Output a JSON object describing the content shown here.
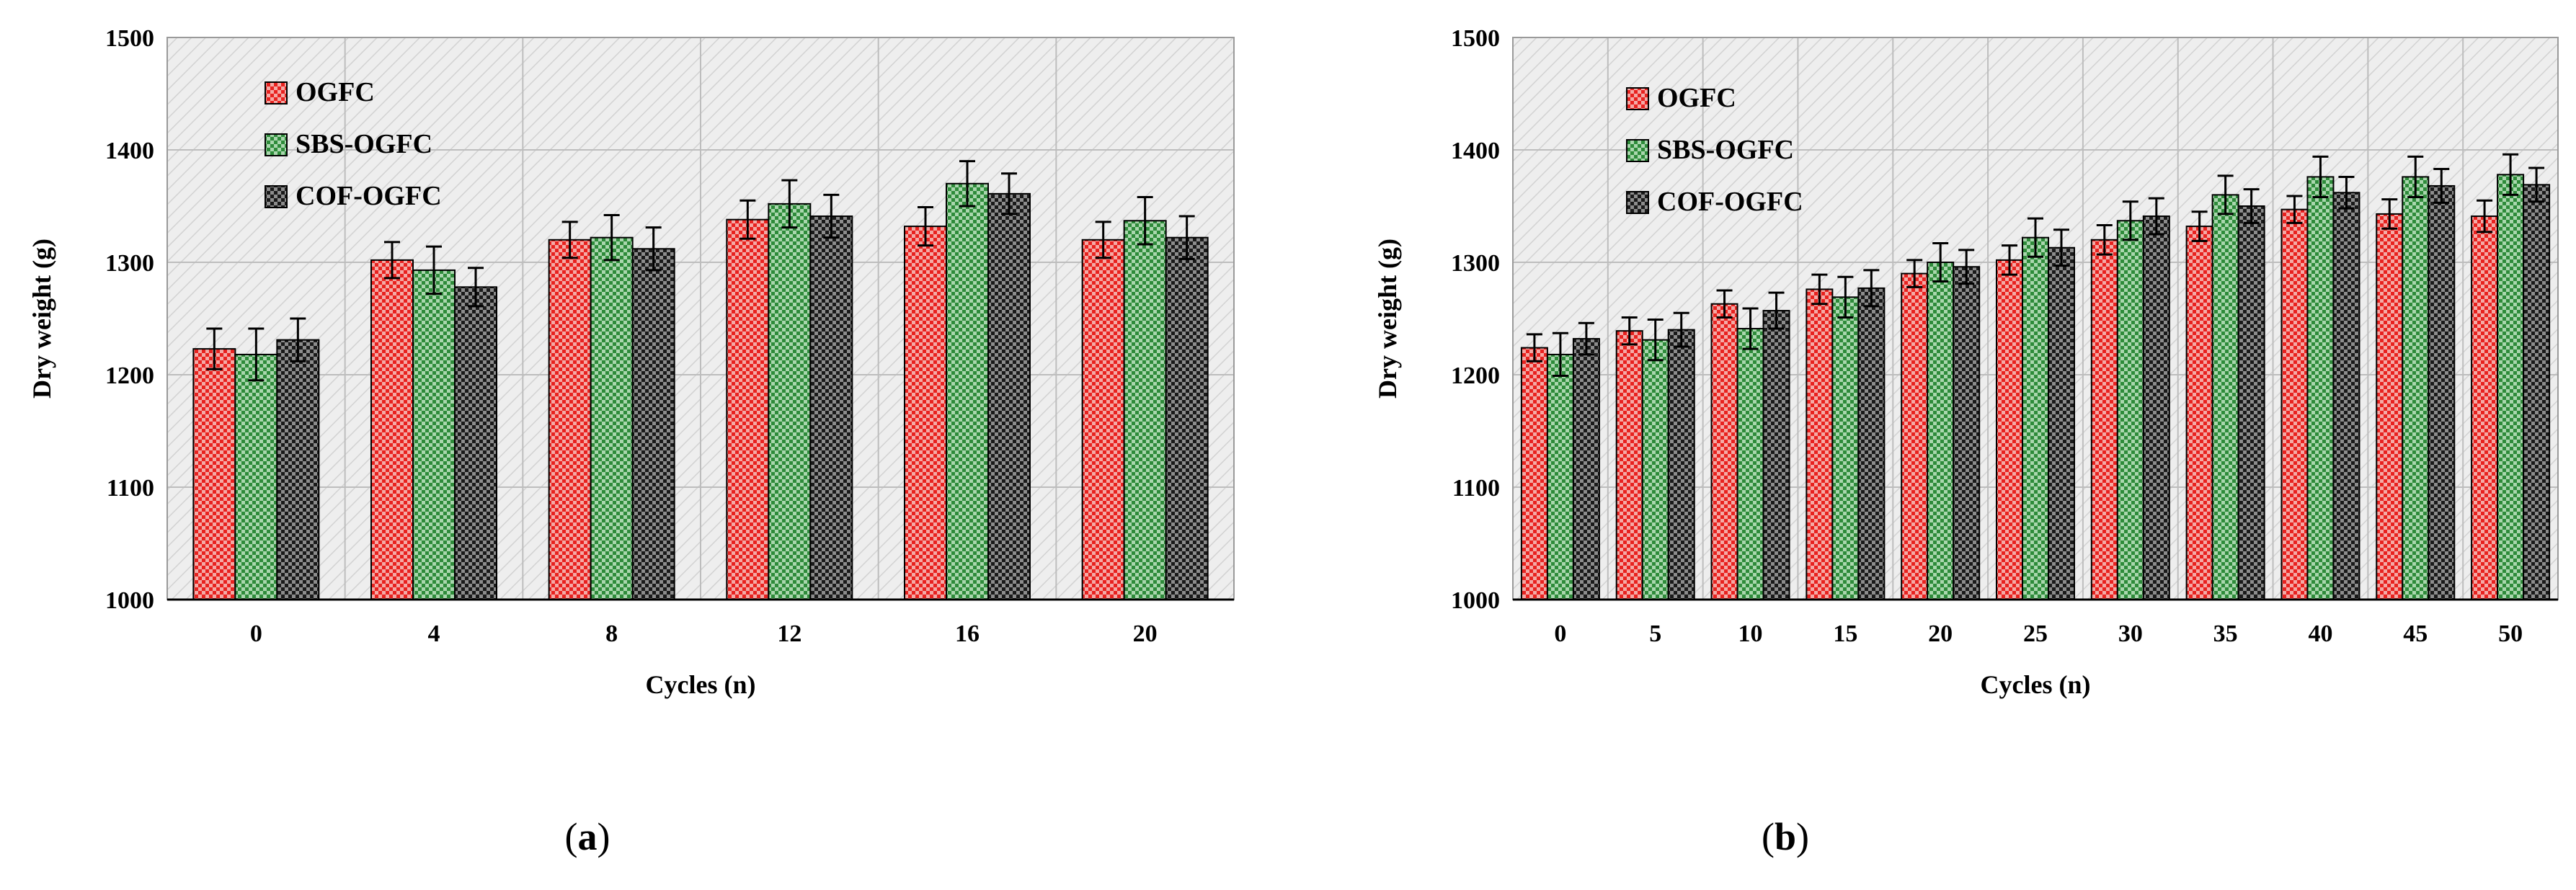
{
  "colors": {
    "ogfc": "#e8221f",
    "sbs": "#2e8b3a",
    "cof": "#1a1a1a",
    "plot_bg": "#eeeeee",
    "grid": "#bdbdbd"
  },
  "chart_data": [
    {
      "id": "a",
      "type": "bar",
      "caption_letter": "a",
      "xlabel": "Cycles (n)",
      "ylabel": "Dry weight (g)",
      "ylim": [
        1000,
        1500
      ],
      "yticks": [
        "1000",
        "1100",
        "1200",
        "1300",
        "1400",
        "1500"
      ],
      "categories": [
        "0",
        "4",
        "8",
        "12",
        "16",
        "20"
      ],
      "legend": [
        "OGFC",
        "SBS-OGFC",
        "COF-OGFC"
      ],
      "legend_position": "top-left",
      "series": [
        {
          "name": "OGFC",
          "values": [
            1223,
            1302,
            1320,
            1338,
            1332,
            1320
          ],
          "errors": [
            18,
            16,
            16,
            17,
            17,
            16
          ]
        },
        {
          "name": "SBS-OGFC",
          "values": [
            1218,
            1293,
            1322,
            1352,
            1370,
            1337
          ],
          "errors": [
            23,
            21,
            20,
            21,
            20,
            21
          ]
        },
        {
          "name": "COF-OGFC",
          "values": [
            1231,
            1278,
            1312,
            1341,
            1361,
            1322
          ],
          "errors": [
            19,
            17,
            19,
            19,
            18,
            19
          ]
        }
      ]
    },
    {
      "id": "b",
      "type": "bar",
      "caption_letter": "b",
      "xlabel": "Cycles (n)",
      "ylabel": "Dry weight (g)",
      "ylim": [
        1000,
        1500
      ],
      "yticks": [
        "1000",
        "1100",
        "1200",
        "1300",
        "1400",
        "1500"
      ],
      "categories": [
        "0",
        "5",
        "10",
        "15",
        "20",
        "25",
        "30",
        "35",
        "40",
        "45",
        "50"
      ],
      "legend": [
        "OGFC",
        "SBS-OGFC",
        "COF-OGFC"
      ],
      "legend_position": "top-left",
      "series": [
        {
          "name": "OGFC",
          "values": [
            1224,
            1239,
            1263,
            1276,
            1290,
            1302,
            1320,
            1332,
            1347,
            1343,
            1341
          ],
          "errors": [
            12,
            12,
            12,
            13,
            12,
            13,
            13,
            13,
            12,
            13,
            14
          ]
        },
        {
          "name": "SBS-OGFC",
          "values": [
            1218,
            1231,
            1241,
            1269,
            1300,
            1322,
            1337,
            1360,
            1376,
            1376,
            1378
          ],
          "errors": [
            19,
            18,
            18,
            18,
            17,
            17,
            17,
            17,
            18,
            18,
            18
          ]
        },
        {
          "name": "COF-OGFC",
          "values": [
            1232,
            1240,
            1257,
            1277,
            1296,
            1313,
            1341,
            1350,
            1362,
            1368,
            1369
          ],
          "errors": [
            14,
            15,
            16,
            16,
            15,
            16,
            16,
            15,
            14,
            15,
            15
          ]
        }
      ]
    }
  ]
}
